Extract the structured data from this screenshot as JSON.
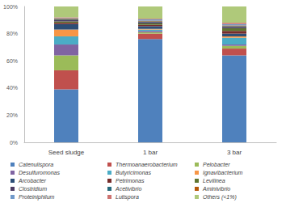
{
  "chart_data": {
    "type": "bar",
    "stacked": true,
    "legend": "bottom",
    "grid": false,
    "categories": [
      "Seed sludge",
      "1 bar",
      "3 bar"
    ],
    "ylim": [
      0,
      100
    ],
    "yticks": [
      {
        "value": 0,
        "label": "0%"
      },
      {
        "value": 20,
        "label": "20%"
      },
      {
        "value": 40,
        "label": "40%"
      },
      {
        "value": 60,
        "label": "60%"
      },
      {
        "value": 80,
        "label": "80%"
      },
      {
        "value": 100,
        "label": "100%"
      }
    ],
    "series": [
      {
        "name": "Catenulispora",
        "color": "#4F81BD",
        "values": [
          39,
          76,
          64
        ]
      },
      {
        "name": "Thermoanaerobacterium",
        "color": "#C0504D",
        "values": [
          14,
          4,
          5
        ]
      },
      {
        "name": "Pelobacter",
        "color": "#9BBB59",
        "values": [
          11,
          1,
          2
        ]
      },
      {
        "name": "Desulfuromonas",
        "color": "#8064A2",
        "values": [
          8,
          1,
          1
        ]
      },
      {
        "name": "Butyricimonas",
        "color": "#4BACC6",
        "values": [
          6,
          1,
          5
        ]
      },
      {
        "name": "Ignavibacterium",
        "color": "#F79646",
        "values": [
          5,
          0.5,
          1
        ]
      },
      {
        "name": "Arcobacter",
        "color": "#2C4D75",
        "values": [
          4,
          2,
          2
        ]
      },
      {
        "name": "Petrimonas",
        "color": "#772C2A",
        "values": [
          1,
          1,
          2
        ]
      },
      {
        "name": "Levilinea",
        "color": "#5F7530",
        "values": [
          1,
          1,
          2
        ]
      },
      {
        "name": "Clostridium",
        "color": "#4D3B62",
        "values": [
          1,
          1,
          1
        ]
      },
      {
        "name": "Acetivibrio",
        "color": "#276A7C",
        "values": [
          0.5,
          0.5,
          0.5
        ]
      },
      {
        "name": "Aminivibrio",
        "color": "#B65708",
        "values": [
          0.5,
          0.5,
          0.5
        ]
      },
      {
        "name": "Proteiniphilum",
        "color": "#729ACA",
        "values": [
          0.5,
          1,
          1
        ]
      },
      {
        "name": "Lutispora",
        "color": "#CD7371",
        "values": [
          0.5,
          0.5,
          1
        ]
      },
      {
        "name": "Others (<1%)",
        "color": "#AFC97A",
        "values": [
          8,
          9,
          12
        ]
      }
    ]
  }
}
